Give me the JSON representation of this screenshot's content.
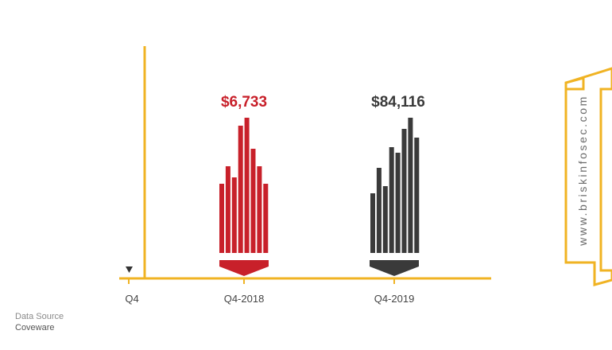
{
  "chart_data": {
    "type": "bar",
    "categories": [
      "Q4-2018",
      "Q4-2019"
    ],
    "values": [
      6733,
      84116
    ],
    "value_labels": [
      "$6,733",
      "$84,116"
    ],
    "axis_start_label": "Q4",
    "colors": [
      "#c8202a",
      "#3a3a3a"
    ],
    "axis_color": "#f0b323"
  },
  "source": {
    "label": "Data Source",
    "value": "Coveware"
  },
  "watermark": "www.briskinfosec.com"
}
